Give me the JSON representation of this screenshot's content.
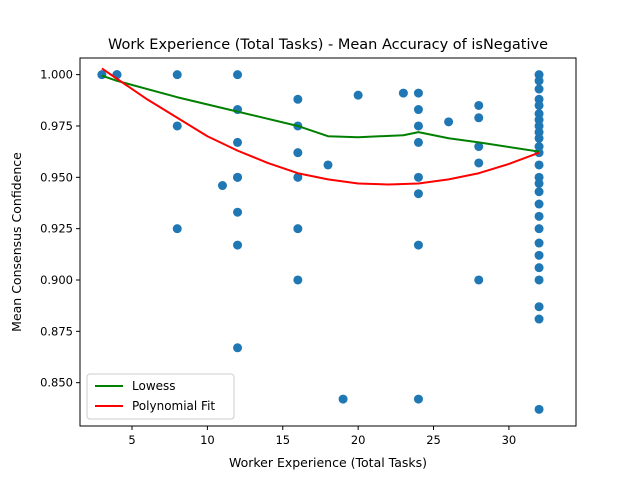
{
  "chart_data": {
    "type": "scatter",
    "title": "Work Experience (Total Tasks) - Mean Accuracy of isNegative",
    "xlabel": "Worker Experience (Total Tasks)",
    "ylabel": "Mean Consensus Confidence",
    "xlim": [
      1.55,
      34.45
    ],
    "ylim": [
      0.8289,
      1.0081
    ],
    "xticks": [
      5,
      10,
      15,
      20,
      25,
      30
    ],
    "yticks": [
      0.85,
      0.875,
      0.9,
      0.925,
      0.95,
      0.975,
      1.0
    ],
    "ytick_labels": [
      "0.850",
      "0.875",
      "0.900",
      "0.925",
      "0.950",
      "0.975",
      "1.000"
    ],
    "grid": false,
    "legend_position": "lower-left",
    "colors": {
      "points": "#1f77b4",
      "lowess": "#008000",
      "poly": "#ff0000"
    },
    "points": [
      [
        3,
        1.0
      ],
      [
        4,
        1.0
      ],
      [
        4,
        1.0
      ],
      [
        8,
        1.0
      ],
      [
        8,
        0.975
      ],
      [
        8,
        0.925
      ],
      [
        11,
        0.946
      ],
      [
        12,
        1.0
      ],
      [
        12,
        0.983
      ],
      [
        12,
        0.967
      ],
      [
        12,
        0.95
      ],
      [
        12,
        0.95
      ],
      [
        12,
        0.933
      ],
      [
        12,
        0.917
      ],
      [
        12,
        0.867
      ],
      [
        16,
        0.988
      ],
      [
        16,
        0.975
      ],
      [
        16,
        0.962
      ],
      [
        16,
        0.95
      ],
      [
        16,
        0.925
      ],
      [
        16,
        0.9
      ],
      [
        18,
        0.956
      ],
      [
        19,
        0.842
      ],
      [
        20,
        0.99
      ],
      [
        23,
        0.991
      ],
      [
        24,
        0.991
      ],
      [
        24,
        0.983
      ],
      [
        24,
        0.975
      ],
      [
        24,
        0.967
      ],
      [
        24,
        0.95
      ],
      [
        24,
        0.942
      ],
      [
        24,
        0.917
      ],
      [
        24,
        0.842
      ],
      [
        26,
        0.977
      ],
      [
        28,
        0.985
      ],
      [
        28,
        0.979
      ],
      [
        28,
        0.965
      ],
      [
        28,
        0.957
      ],
      [
        28,
        0.9
      ],
      [
        32,
        1.0
      ],
      [
        32,
        0.997
      ],
      [
        32,
        0.993
      ],
      [
        32,
        0.988
      ],
      [
        32,
        0.985
      ],
      [
        32,
        0.981
      ],
      [
        32,
        0.978
      ],
      [
        32,
        0.975
      ],
      [
        32,
        0.972
      ],
      [
        32,
        0.969
      ],
      [
        32,
        0.965
      ],
      [
        32,
        0.962
      ],
      [
        32,
        0.956
      ],
      [
        32,
        0.95
      ],
      [
        32,
        0.947
      ],
      [
        32,
        0.943
      ],
      [
        32,
        0.937
      ],
      [
        32,
        0.931
      ],
      [
        32,
        0.925
      ],
      [
        32,
        0.918
      ],
      [
        32,
        0.912
      ],
      [
        32,
        0.906
      ],
      [
        32,
        0.9
      ],
      [
        32,
        0.887
      ],
      [
        32,
        0.881
      ],
      [
        32,
        0.837
      ]
    ],
    "series": [
      {
        "name": "Lowess",
        "type": "line",
        "x": [
          3,
          4,
          8,
          12,
          16,
          18,
          20,
          23,
          24,
          26,
          28,
          32
        ],
        "y": [
          0.9995,
          0.997,
          0.989,
          0.982,
          0.975,
          0.97,
          0.9695,
          0.9705,
          0.972,
          0.969,
          0.967,
          0.9625
        ]
      },
      {
        "name": "Polynomial Fit",
        "type": "line",
        "x": [
          3,
          4,
          6,
          8,
          10,
          12,
          14,
          16,
          18,
          20,
          22,
          24,
          26,
          28,
          30,
          32
        ],
        "y": [
          1.003,
          0.998,
          0.988,
          0.979,
          0.97,
          0.963,
          0.957,
          0.952,
          0.949,
          0.947,
          0.9465,
          0.947,
          0.949,
          0.952,
          0.9565,
          0.962
        ]
      }
    ]
  }
}
